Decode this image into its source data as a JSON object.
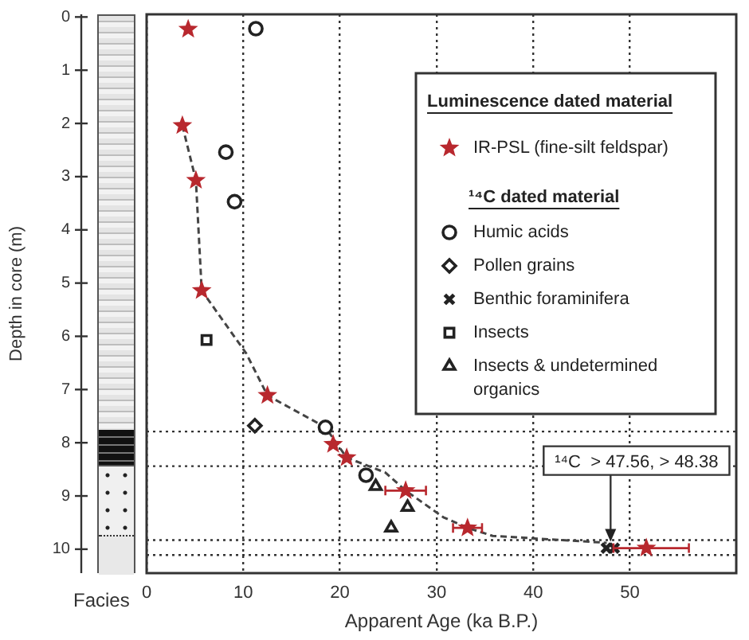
{
  "chart_data": {
    "type": "scatter",
    "xlabel": "Apparent Age (ka B.P.)",
    "ylabel": "Depth in core (m)",
    "legend_title": "Luminescence dated material",
    "legend": "top right",
    "grid": "x",
    "xlim": [
      0,
      61
    ],
    "xticks": [
      0,
      10,
      20,
      30,
      40,
      50
    ],
    "ylim": [
      10.45,
      -0.05
    ],
    "yticks": [
      0,
      1,
      2,
      3,
      4,
      5,
      6,
      7,
      8,
      9,
      10
    ],
    "annotations": [
      "¹⁴C dated material",
      "Facies",
      {
        "text": "¹⁴C  > 47.56, > 48.38",
        "x": 48,
        "y": 9.98
      }
    ],
    "ref_lines": [
      {
        "axis": "y",
        "value": 7.79,
        "line_style": "dotted",
        "color": "#333333"
      },
      {
        "axis": "y",
        "value": 8.44,
        "line_style": "dotted",
        "color": "#333333"
      },
      {
        "axis": "y",
        "value": 9.83,
        "line_style": "dotted",
        "color": "#333333"
      },
      {
        "axis": "y",
        "value": 10.11,
        "line_style": "dotted",
        "color": "#333333"
      }
    ],
    "series": [
      {
        "name": "IR-PSL (fine-silt feldspar)",
        "marker": "star",
        "color": "#b8282e",
        "x": [
          4.3,
          3.7,
          5.1,
          5.7,
          12.5,
          19.3,
          20.7,
          26.8,
          33.2,
          51.7
        ],
        "values": [
          0.23,
          2.04,
          3.07,
          5.14,
          7.11,
          8.03,
          8.28,
          8.9,
          9.6,
          9.98
        ],
        "xerrors": [
          null,
          null,
          null,
          null,
          null,
          null,
          null,
          2.1,
          1.5,
          [
            48.3,
            56.1
          ]
        ]
      },
      {
        "name": "Humic acids",
        "marker": "circle",
        "color": "#222222",
        "x": [
          11.3,
          8.2,
          9.1,
          18.5,
          22.7
        ],
        "values": [
          0.22,
          2.54,
          3.47,
          7.71,
          8.61
        ]
      },
      {
        "name": "Pollen grains",
        "marker": "diamond",
        "color": "#222222",
        "x": [
          11.2
        ],
        "values": [
          7.68
        ]
      },
      {
        "name": "Benthic foraminifera",
        "marker": "cross",
        "color": "#222222",
        "x": [
          47.56,
          48.38
        ],
        "values": [
          9.98,
          9.98
        ]
      },
      {
        "name": "Insects",
        "marker": "square",
        "color": "#222222",
        "x": [
          6.2
        ],
        "values": [
          6.07
        ]
      },
      {
        "name": "Insects & undetermined organics",
        "marker": "triangle",
        "color": "#222222",
        "x": [
          23.7,
          27.0,
          25.3
        ],
        "values": [
          8.82,
          9.21,
          9.6
        ]
      },
      {
        "type": "line",
        "marker": "none",
        "line_style": "dashed",
        "color": "#444444",
        "x": [
          3.7,
          5.1,
          5.7,
          10.3,
          12.5,
          18.5,
          20.7,
          24.7,
          26.8,
          30.7,
          33.2,
          35.8,
          47.6
        ],
        "values": [
          2.04,
          3.07,
          5.14,
          6.32,
          7.11,
          7.71,
          8.28,
          8.56,
          8.9,
          9.4,
          9.6,
          9.75,
          9.88
        ]
      }
    ]
  }
}
